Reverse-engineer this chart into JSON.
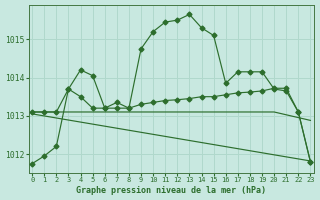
{
  "title": "Graphe pression niveau de la mer (hPa)",
  "background_color": "#c8e8e0",
  "grid_color": "#b0d8cc",
  "line_color": "#2d6e2d",
  "ylim": [
    1011.5,
    1015.9
  ],
  "xlim": [
    -0.3,
    23.3
  ],
  "yticks": [
    1012,
    1013,
    1014,
    1015
  ],
  "ytick_labels": [
    "1012",
    "1013",
    "1014",
    "1015"
  ],
  "line1_y": [
    1011.75,
    1011.95,
    1012.2,
    1013.7,
    1014.2,
    1014.05,
    1013.2,
    1013.35,
    1013.2,
    1014.75,
    1015.2,
    1015.45,
    1015.5,
    1015.65,
    1015.3,
    1015.1,
    1013.85,
    1014.15,
    1014.15,
    1014.15,
    1013.7,
    1013.65,
    1013.1,
    1011.8
  ],
  "line2_y": [
    1013.1,
    1013.1,
    1013.1,
    1013.7,
    1013.5,
    1013.2,
    1013.2,
    1013.2,
    1013.2,
    1013.3,
    1013.35,
    1013.4,
    1013.42,
    1013.45,
    1013.5,
    1013.5,
    1013.55,
    1013.6,
    1013.62,
    1013.65,
    1013.72,
    1013.72,
    1013.1,
    1011.8
  ],
  "line3_x": [
    0,
    20,
    23
  ],
  "line3_y": [
    1013.1,
    1013.1,
    1012.88
  ],
  "line4_x": [
    0,
    23
  ],
  "line4_y": [
    1013.05,
    1011.82
  ]
}
